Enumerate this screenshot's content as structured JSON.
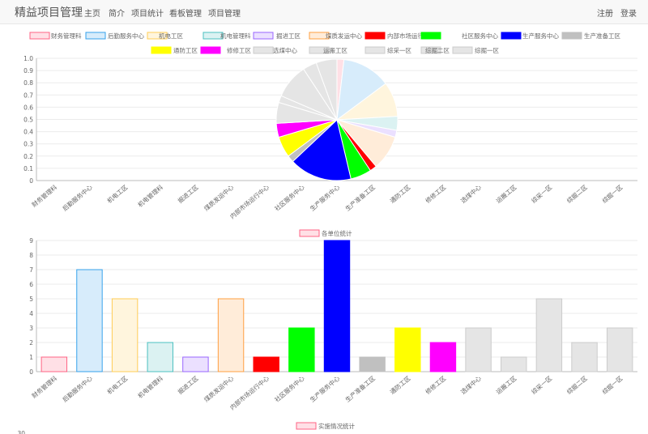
{
  "nav": {
    "brand": "精益项目管理",
    "items": [
      "主页",
      "简介",
      "项目统计",
      "看板管理",
      "项目管理"
    ],
    "right": [
      "注册",
      "登录"
    ]
  },
  "categories": [
    "财务管理科",
    "后勤服务中心",
    "机电工区",
    "机电管理科",
    "掘进工区",
    "煤质发运中心",
    "内部市场运行中心",
    "社区服务中心",
    "生产服务中心",
    "生产准备工区",
    "通防工区",
    "修修工区",
    "选煤中心",
    "运搬工区",
    "综采一区",
    "综掘二区",
    "综掘一区"
  ],
  "colors": {
    "fills": [
      "#ffe0e6",
      "#d7ecfb",
      "#fff5dd",
      "#dbf2f2",
      "#ebe0ff",
      "#ffecd9",
      "#ff0000",
      "#00ff00",
      "#0000ff",
      "#c0c0c0",
      "#ffff00",
      "#ff00ff",
      "#e5e5e5",
      "#e5e5e5",
      "#e5e5e5",
      "#e5e5e5",
      "#e5e5e5"
    ],
    "borders": [
      "#ff6384",
      "#36a2eb",
      "#ffcd56",
      "#4bc0c0",
      "#9966ff",
      "#ff9f40",
      "#ff0000",
      "#00ff00",
      "#0000ff",
      "#c0c0c0",
      "#ffff00",
      "#ff00ff",
      "#cccccc",
      "#cccccc",
      "#cccccc",
      "#cccccc",
      "#cccccc"
    ]
  },
  "chart_data": [
    {
      "type": "pie",
      "legend_position": "top",
      "ylim": [
        0,
        1.0
      ],
      "yticks": [
        "1.0",
        "0.9",
        "0.8",
        "0.7",
        "0.6",
        "0.5",
        "0.4",
        "0.3",
        "0.2",
        "0.1",
        "0"
      ],
      "values": [
        1,
        7,
        5,
        2,
        1,
        5,
        1,
        3,
        9,
        1,
        3,
        2,
        3,
        1,
        5,
        2,
        3
      ]
    },
    {
      "type": "bar",
      "legend": "各单位统计",
      "ylim": [
        0,
        9
      ],
      "yticks": [
        "9",
        "8",
        "7",
        "6",
        "5",
        "4",
        "3",
        "2",
        "1",
        "0"
      ],
      "values": [
        1,
        7,
        5,
        2,
        1,
        5,
        1,
        3,
        9,
        1,
        3,
        2,
        3,
        1,
        5,
        2,
        3
      ]
    },
    {
      "type": "bar",
      "legend": "实施情况统计",
      "visible_ytick": "30"
    }
  ]
}
